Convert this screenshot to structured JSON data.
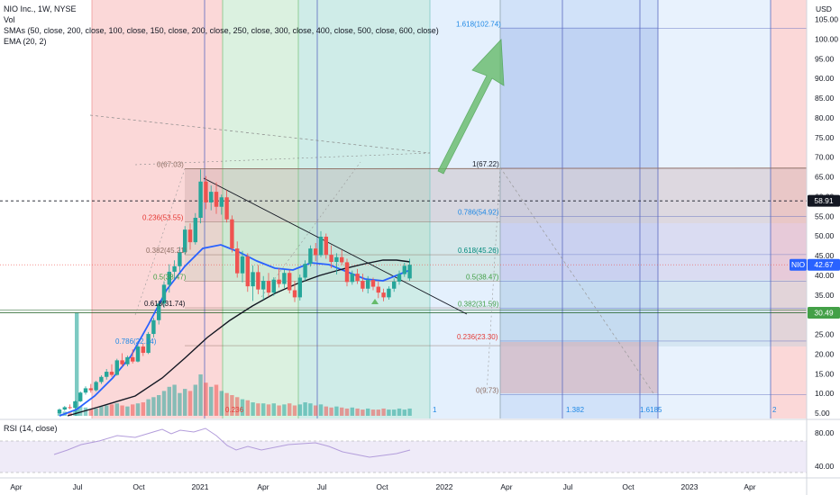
{
  "legend": {
    "symbol_line": "NIO Inc., 1W, NYSE",
    "vol": "Vol",
    "smas": "SMAs (50, close, 200, close, 100, close, 150, close, 200, close, 250, close, 300, close, 400, close, 500, close, 600, close)",
    "ema": "EMA (20, 2)",
    "rsi": "RSI (14, close)"
  },
  "currency": "USD",
  "colors": {
    "up": "#26a69a",
    "down": "#ef5350",
    "ema": "#2962ff",
    "sma": "#131722",
    "red_zone": "#f8b8b8",
    "green_zone": "#b7e3c2",
    "teal_zone": "#a8dcd6",
    "blue_zone": "#b3cff5",
    "light_blue_zone": "#d9eafc",
    "rsi_band": "#7e57c2",
    "arrow": "#66bb6a"
  },
  "chart_data": {
    "type": "candlestick",
    "price_axis": {
      "min": 5,
      "max": 105,
      "ticks": [
        105,
        100,
        95,
        90,
        85,
        80,
        75,
        70,
        65,
        60,
        55,
        50,
        45,
        40,
        35,
        30,
        25,
        20,
        15,
        10,
        5
      ]
    },
    "time_axis_labels": [
      "Apr",
      "Jul",
      "Oct",
      "2021",
      "Apr",
      "Jul",
      "Oct",
      "2022",
      "Apr",
      "Jul",
      "Oct",
      "2023",
      "Apr"
    ],
    "rsi_axis": {
      "ticks": [
        80,
        40
      ]
    },
    "price_badges": [
      {
        "text": "58.91",
        "value": 58.91,
        "style": "dark"
      },
      {
        "text": "NIO",
        "value": 42.67,
        "style": "blue"
      },
      {
        "text": "42.67",
        "value": 42.67,
        "style": "blue"
      },
      {
        "text": "30.49",
        "value": 30.49,
        "style": "green"
      }
    ],
    "fib_retracement_left": [
      {
        "label": "0(67.03)",
        "value": 67.03
      },
      {
        "label": "0.236(53.55)",
        "value": 53.55
      },
      {
        "label": "0.382(45.21)",
        "value": 45.21
      },
      {
        "label": "0.5(38.47)",
        "value": 38.47
      },
      {
        "label": "0.618(31.74)",
        "value": 31.74
      },
      {
        "label": "0.786(22.14)",
        "value": 22.14
      }
    ],
    "fib_extension_right": [
      {
        "label": "1.618(102.74)",
        "value": 102.74
      },
      {
        "label": "1(67.22)",
        "value": 67.22
      },
      {
        "label": "0.786(54.92)",
        "value": 54.92
      },
      {
        "label": "0.618(45.26)",
        "value": 45.26
      },
      {
        "label": "0.5(38.47)",
        "value": 38.47
      },
      {
        "label": "0.382(31.59)",
        "value": 31.59
      },
      {
        "label": "0.236(23.30)",
        "value": 23.3
      },
      {
        "label": "0(9.73)",
        "value": 9.73
      }
    ],
    "time_fib_labels": [
      "1",
      "1.382",
      "1.6185",
      "2"
    ],
    "misc_labels": [
      "0.236"
    ],
    "candles": [
      {
        "o": 5.0,
        "h": 6.2,
        "l": 4.8,
        "c": 5.9
      },
      {
        "o": 5.9,
        "h": 6.8,
        "l": 5.6,
        "c": 6.5
      },
      {
        "o": 6.5,
        "h": 7.2,
        "l": 6.0,
        "c": 6.3
      },
      {
        "o": 6.3,
        "h": 8.2,
        "l": 6.1,
        "c": 8.0
      },
      {
        "o": 8.0,
        "h": 10.5,
        "l": 7.8,
        "c": 10.2
      },
      {
        "o": 10.2,
        "h": 11.8,
        "l": 9.7,
        "c": 11.3
      },
      {
        "o": 11.3,
        "h": 12.4,
        "l": 10.2,
        "c": 10.8
      },
      {
        "o": 10.8,
        "h": 13.2,
        "l": 10.5,
        "c": 12.9
      },
      {
        "o": 12.9,
        "h": 14.6,
        "l": 12.4,
        "c": 14.2
      },
      {
        "o": 14.2,
        "h": 16.2,
        "l": 13.5,
        "c": 15.5
      },
      {
        "o": 15.5,
        "h": 17.4,
        "l": 14.2,
        "c": 14.7
      },
      {
        "o": 14.7,
        "h": 18.8,
        "l": 14.5,
        "c": 18.4
      },
      {
        "o": 18.4,
        "h": 20.2,
        "l": 16.8,
        "c": 17.4
      },
      {
        "o": 17.4,
        "h": 19.6,
        "l": 16.9,
        "c": 19.2
      },
      {
        "o": 19.2,
        "h": 21.2,
        "l": 17.6,
        "c": 18.1
      },
      {
        "o": 18.1,
        "h": 22.4,
        "l": 17.9,
        "c": 21.9
      },
      {
        "o": 21.9,
        "h": 22.8,
        "l": 19.5,
        "c": 20.3
      },
      {
        "o": 20.3,
        "h": 25.6,
        "l": 20.0,
        "c": 25.1
      },
      {
        "o": 25.1,
        "h": 29.2,
        "l": 24.2,
        "c": 28.6
      },
      {
        "o": 28.6,
        "h": 33.5,
        "l": 27.5,
        "c": 32.8
      },
      {
        "o": 32.8,
        "h": 38.5,
        "l": 31.8,
        "c": 37.6
      },
      {
        "o": 37.6,
        "h": 42.8,
        "l": 35.6,
        "c": 40.9
      },
      {
        "o": 40.9,
        "h": 43.8,
        "l": 38.8,
        "c": 42.3
      },
      {
        "o": 42.3,
        "h": 47.2,
        "l": 40.8,
        "c": 45.9
      },
      {
        "o": 45.9,
        "h": 52.5,
        "l": 45.2,
        "c": 51.6
      },
      {
        "o": 51.6,
        "h": 53.2,
        "l": 46.5,
        "c": 48.4
      },
      {
        "o": 48.4,
        "h": 55.8,
        "l": 47.8,
        "c": 54.6
      },
      {
        "o": 54.6,
        "h": 66.9,
        "l": 53.2,
        "c": 63.8
      },
      {
        "o": 63.8,
        "h": 65.2,
        "l": 56.8,
        "c": 58.5
      },
      {
        "o": 58.5,
        "h": 62.8,
        "l": 56.5,
        "c": 61.2
      },
      {
        "o": 61.2,
        "h": 63.6,
        "l": 55.6,
        "c": 57.4
      },
      {
        "o": 57.4,
        "h": 60.5,
        "l": 55.4,
        "c": 59.8
      },
      {
        "o": 59.8,
        "h": 61.6,
        "l": 53.4,
        "c": 54.2
      },
      {
        "o": 54.2,
        "h": 55.2,
        "l": 45.8,
        "c": 46.8
      },
      {
        "o": 46.8,
        "h": 48.6,
        "l": 39.4,
        "c": 40.5
      },
      {
        "o": 40.5,
        "h": 46.2,
        "l": 38.2,
        "c": 44.8
      },
      {
        "o": 44.8,
        "h": 45.6,
        "l": 35.8,
        "c": 37.2
      },
      {
        "o": 37.2,
        "h": 42.5,
        "l": 33.5,
        "c": 40.8
      },
      {
        "o": 40.8,
        "h": 42.6,
        "l": 35.2,
        "c": 36.4
      },
      {
        "o": 36.4,
        "h": 39.8,
        "l": 33.8,
        "c": 38.6
      },
      {
        "o": 38.6,
        "h": 40.6,
        "l": 34.6,
        "c": 35.6
      },
      {
        "o": 35.6,
        "h": 39.5,
        "l": 34.8,
        "c": 38.9
      },
      {
        "o": 38.9,
        "h": 41.8,
        "l": 36.9,
        "c": 37.8
      },
      {
        "o": 37.8,
        "h": 41.5,
        "l": 36.8,
        "c": 40.6
      },
      {
        "o": 40.6,
        "h": 41.4,
        "l": 35.4,
        "c": 36.2
      },
      {
        "o": 36.2,
        "h": 38.6,
        "l": 33.2,
        "c": 34.4
      },
      {
        "o": 34.4,
        "h": 40.2,
        "l": 33.6,
        "c": 39.4
      },
      {
        "o": 39.4,
        "h": 43.8,
        "l": 38.6,
        "c": 42.9
      },
      {
        "o": 42.9,
        "h": 47.6,
        "l": 42.2,
        "c": 46.8
      },
      {
        "o": 46.8,
        "h": 48.2,
        "l": 43.6,
        "c": 45.1
      },
      {
        "o": 45.1,
        "h": 51.2,
        "l": 44.6,
        "c": 49.8
      },
      {
        "o": 49.8,
        "h": 50.6,
        "l": 44.2,
        "c": 45.2
      },
      {
        "o": 45.2,
        "h": 47.6,
        "l": 41.8,
        "c": 43.4
      },
      {
        "o": 43.4,
        "h": 45.6,
        "l": 40.2,
        "c": 44.6
      },
      {
        "o": 44.6,
        "h": 46.4,
        "l": 42.6,
        "c": 43.3
      },
      {
        "o": 43.3,
        "h": 44.2,
        "l": 37.2,
        "c": 38.3
      },
      {
        "o": 38.3,
        "h": 41.2,
        "l": 37.6,
        "c": 40.4
      },
      {
        "o": 40.4,
        "h": 41.6,
        "l": 37.8,
        "c": 38.6
      },
      {
        "o": 38.6,
        "h": 40.4,
        "l": 35.8,
        "c": 36.6
      },
      {
        "o": 36.6,
        "h": 39.8,
        "l": 35.4,
        "c": 38.8
      },
      {
        "o": 38.8,
        "h": 39.4,
        "l": 36.2,
        "c": 37.1
      },
      {
        "o": 37.1,
        "h": 38.4,
        "l": 34.2,
        "c": 35.6
      },
      {
        "o": 35.6,
        "h": 36.6,
        "l": 33.4,
        "c": 34.4
      },
      {
        "o": 34.4,
        "h": 37.2,
        "l": 33.8,
        "c": 36.6
      },
      {
        "o": 36.6,
        "h": 39.2,
        "l": 35.8,
        "c": 38.4
      },
      {
        "o": 38.4,
        "h": 41.2,
        "l": 37.6,
        "c": 40.3
      },
      {
        "o": 40.3,
        "h": 43.2,
        "l": 39.6,
        "c": 42.4
      },
      {
        "o": 39.2,
        "h": 44.2,
        "l": 38.6,
        "c": 42.67
      }
    ]
  }
}
